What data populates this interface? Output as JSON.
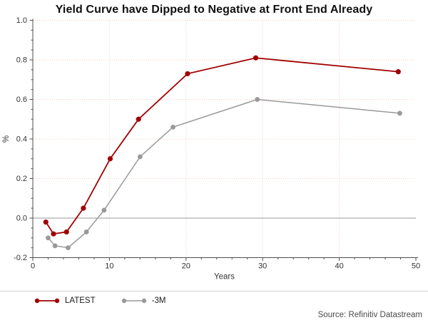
{
  "title": "Yield Curve have Dipped to Negative at Front End Already",
  "source_note": "Source: Refinitiv Datastream",
  "legend": {
    "items": [
      {
        "label": "LATEST",
        "color": "#a00000"
      },
      {
        "label": "-3M",
        "color": "#999999"
      }
    ]
  },
  "chart_data": {
    "type": "line",
    "title": "Yield Curve have Dipped to Negative at Front End Already",
    "xlabel": "Years",
    "ylabel": "%",
    "xlim": [
      0,
      50
    ],
    "ylim": [
      -0.2,
      1.0
    ],
    "x_ticks": [
      0,
      10,
      20,
      30,
      40,
      50
    ],
    "y_ticks": [
      -0.2,
      0.0,
      0.2,
      0.4,
      0.6,
      0.8,
      1.0
    ],
    "x_minor_step": 2,
    "y_minor_step": 0.05,
    "grid": {
      "vertical_at": [
        10,
        20,
        30,
        40
      ],
      "horizontal_at": [
        0.2,
        0.4,
        0.6,
        0.8,
        1.0
      ],
      "style": "dotted",
      "color": "#f0d2c2"
    },
    "zero_line": {
      "y": 0.0,
      "color": "#999999"
    },
    "legend_position": "bottom-left",
    "series": [
      {
        "name": "LATEST",
        "color": "#a00000",
        "marker": "circle",
        "x": [
          1.7,
          2.7,
          4.4,
          6.6,
          10.1,
          13.8,
          20.2,
          29.1,
          47.7
        ],
        "y": [
          -0.02,
          -0.08,
          -0.07,
          0.05,
          0.3,
          0.5,
          0.73,
          0.81,
          0.74
        ]
      },
      {
        "name": "-3M",
        "color": "#999999",
        "marker": "circle",
        "x": [
          2.0,
          2.9,
          4.6,
          7.0,
          9.3,
          14.0,
          18.3,
          29.3,
          47.9
        ],
        "y": [
          -0.1,
          -0.14,
          -0.15,
          -0.07,
          0.04,
          0.31,
          0.46,
          0.6,
          0.53
        ]
      }
    ]
  }
}
